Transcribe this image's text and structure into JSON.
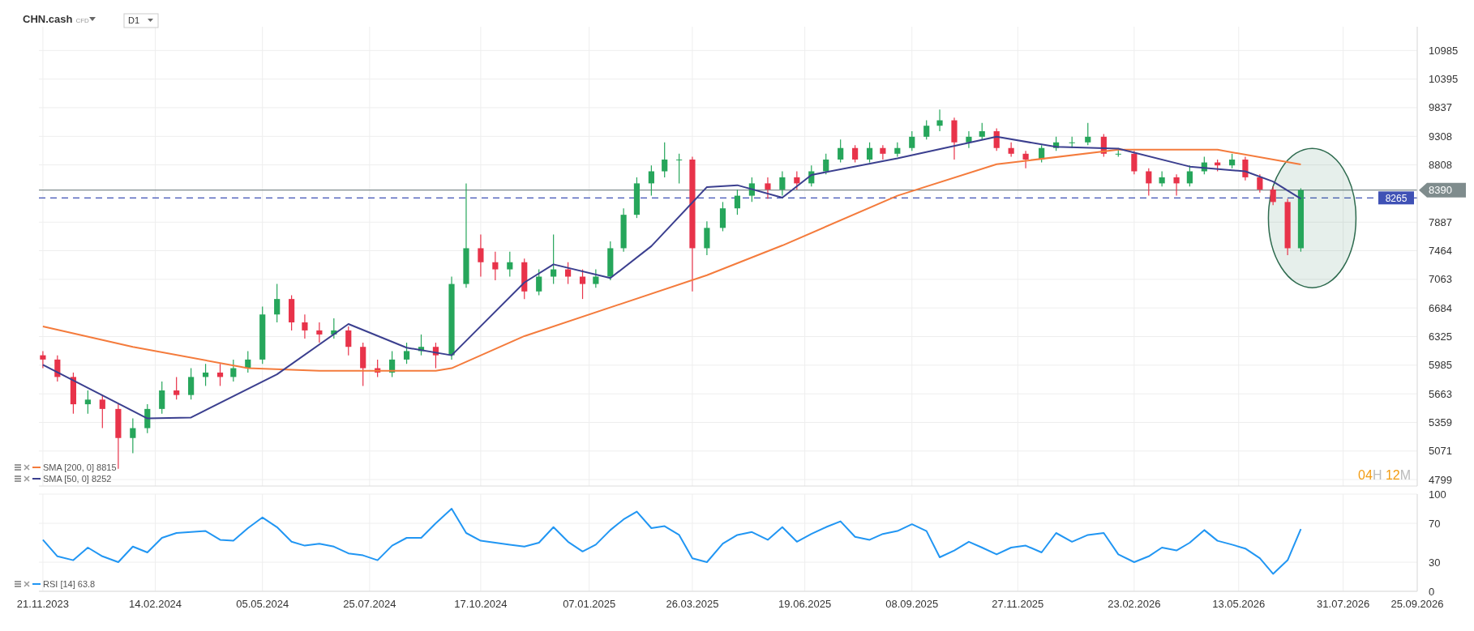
{
  "chart_data": [
    {
      "type": "candlestick",
      "title": "CHN.cash",
      "subtitle": "CFD",
      "annotations": [
        "D1",
        "04H 12M"
      ],
      "x": [
        "2023-11-21",
        "2023-12-02",
        "2023-12-14",
        "2023-12-25",
        "2024-01-05",
        "2024-01-17",
        "2024-01-28",
        "2024-02-08",
        "2024-02-19",
        "2024-03-01",
        "2024-03-12",
        "2024-03-23",
        "2024-04-03",
        "2024-04-13",
        "2024-04-24",
        "2024-05-05",
        "2024-05-16",
        "2024-05-27",
        "2024-06-06",
        "2024-06-17",
        "2024-06-28",
        "2024-07-09",
        "2024-07-20",
        "2024-07-31",
        "2024-08-11",
        "2024-08-22",
        "2024-09-02",
        "2024-09-13",
        "2024-09-25",
        "2024-10-06",
        "2024-10-17",
        "2024-10-28",
        "2024-11-08",
        "2024-11-19",
        "2024-11-30",
        "2024-12-11",
        "2024-12-22",
        "2025-01-02",
        "2025-01-12",
        "2025-01-23",
        "2025-02-02",
        "2025-02-12",
        "2025-02-23",
        "2025-03-05",
        "2025-03-16",
        "2025-03-26",
        "2025-04-06",
        "2025-04-18",
        "2025-04-29",
        "2025-05-10",
        "2025-05-22",
        "2025-06-02",
        "2025-06-13",
        "2025-06-24",
        "2025-07-05",
        "2025-07-16",
        "2025-07-27",
        "2025-08-07",
        "2025-08-17",
        "2025-08-28",
        "2025-09-08",
        "2025-09-19",
        "2025-09-29",
        "2025-10-10",
        "2025-10-21",
        "2025-10-31",
        "2025-11-11",
        "2025-11-22",
        "2025-12-03",
        "2025-12-15",
        "2025-12-26",
        "2026-01-07",
        "2026-01-19",
        "2026-01-31",
        "2026-02-11",
        "2026-02-23",
        "2026-03-06",
        "2026-03-16",
        "2026-03-27",
        "2026-04-06",
        "2026-04-17",
        "2026-04-27",
        "2026-05-08",
        "2026-05-18",
        "2026-05-29",
        "2026-06-08",
        "2026-06-19",
        "2026-06-29"
      ],
      "ohlc": [
        [
          6100,
          6150,
          5950,
          6050
        ],
        [
          6050,
          6100,
          5800,
          5850
        ],
        [
          5850,
          5900,
          5450,
          5550
        ],
        [
          5550,
          5700,
          5450,
          5600
        ],
        [
          5600,
          5650,
          5300,
          5500
        ],
        [
          5500,
          5550,
          4900,
          5200
        ],
        [
          5200,
          5400,
          5050,
          5300
        ],
        [
          5300,
          5550,
          5250,
          5500
        ],
        [
          5500,
          5800,
          5450,
          5700
        ],
        [
          5700,
          5850,
          5600,
          5650
        ],
        [
          5650,
          5950,
          5600,
          5850
        ],
        [
          5850,
          6000,
          5750,
          5900
        ],
        [
          5900,
          6000,
          5750,
          5850
        ],
        [
          5850,
          6050,
          5800,
          5950
        ],
        [
          5950,
          6150,
          5900,
          6050
        ],
        [
          6050,
          6700,
          6000,
          6600
        ],
        [
          6600,
          7000,
          6500,
          6800
        ],
        [
          6800,
          6850,
          6400,
          6500
        ],
        [
          6500,
          6600,
          6300,
          6400
        ],
        [
          6400,
          6500,
          6250,
          6350
        ],
        [
          6350,
          6550,
          6300,
          6400
        ],
        [
          6400,
          6450,
          6100,
          6200
        ],
        [
          6200,
          6250,
          5750,
          5950
        ],
        [
          5950,
          6050,
          5850,
          5900
        ],
        [
          5900,
          6150,
          5850,
          6050
        ],
        [
          6050,
          6250,
          6000,
          6150
        ],
        [
          6150,
          6350,
          6100,
          6200
        ],
        [
          6200,
          6250,
          5950,
          6100
        ],
        [
          6100,
          7100,
          6050,
          7000
        ],
        [
          7000,
          8500,
          6950,
          7500
        ],
        [
          7500,
          7700,
          7100,
          7300
        ],
        [
          7300,
          7450,
          7050,
          7200
        ],
        [
          7200,
          7450,
          7100,
          7300
        ],
        [
          7300,
          7350,
          6800,
          6900
        ],
        [
          6900,
          7200,
          6850,
          7100
        ],
        [
          7100,
          7700,
          7000,
          7200
        ],
        [
          7200,
          7300,
          7000,
          7100
        ],
        [
          7100,
          7200,
          6800,
          7000
        ],
        [
          7000,
          7200,
          6950,
          7100
        ],
        [
          7100,
          7600,
          7050,
          7500
        ],
        [
          7500,
          8100,
          7450,
          8000
        ],
        [
          8000,
          8600,
          7950,
          8500
        ],
        [
          8500,
          8800,
          8300,
          8700
        ],
        [
          8700,
          9200,
          8600,
          8900
        ],
        [
          8900,
          9000,
          8500,
          8900
        ],
        [
          8900,
          8950,
          6900,
          7500
        ],
        [
          7500,
          7900,
          7400,
          7800
        ],
        [
          7800,
          8200,
          7750,
          8100
        ],
        [
          8100,
          8400,
          8000,
          8300
        ],
        [
          8300,
          8600,
          8200,
          8500
        ],
        [
          8500,
          8600,
          8250,
          8400
        ],
        [
          8400,
          8700,
          8300,
          8600
        ],
        [
          8600,
          8700,
          8400,
          8500
        ],
        [
          8500,
          8800,
          8450,
          8700
        ],
        [
          8700,
          9000,
          8650,
          8900
        ],
        [
          8900,
          9250,
          8850,
          9100
        ],
        [
          9100,
          9150,
          8850,
          8900
        ],
        [
          8900,
          9200,
          8850,
          9100
        ],
        [
          9100,
          9150,
          8900,
          9000
        ],
        [
          9000,
          9200,
          8950,
          9100
        ],
        [
          9100,
          9400,
          9050,
          9300
        ],
        [
          9300,
          9600,
          9250,
          9500
        ],
        [
          9500,
          9800,
          9400,
          9600
        ],
        [
          9600,
          9650,
          8900,
          9200
        ],
        [
          9200,
          9400,
          9100,
          9300
        ],
        [
          9300,
          9550,
          9250,
          9400
        ],
        [
          9400,
          9450,
          9050,
          9100
        ],
        [
          9100,
          9200,
          8950,
          9000
        ],
        [
          9000,
          9050,
          8750,
          8900
        ],
        [
          8900,
          9150,
          8850,
          9100
        ],
        [
          9100,
          9300,
          9050,
          9200
        ],
        [
          9200,
          9300,
          9100,
          9200
        ],
        [
          9200,
          9550,
          9150,
          9300
        ],
        [
          9300,
          9350,
          8950,
          9000
        ],
        [
          9000,
          9100,
          8950,
          9000
        ],
        [
          9000,
          9050,
          8650,
          8700
        ],
        [
          8700,
          8750,
          8300,
          8500
        ],
        [
          8500,
          8700,
          8450,
          8600
        ],
        [
          8600,
          8650,
          8300,
          8500
        ],
        [
          8500,
          8800,
          8450,
          8700
        ],
        [
          8700,
          8950,
          8650,
          8850
        ],
        [
          8850,
          8900,
          8700,
          8800
        ],
        [
          8800,
          9000,
          8750,
          8900
        ],
        [
          8900,
          8950,
          8550,
          8600
        ],
        [
          8600,
          8650,
          8350,
          8400
        ],
        [
          8400,
          8450,
          8150,
          8200
        ],
        [
          8200,
          8250,
          7400,
          7500
        ],
        [
          7500,
          8420,
          7450,
          8390
        ]
      ],
      "series": [
        {
          "type": "line",
          "name": "SMA [200, 0] 8815",
          "color": "#f47b3c",
          "x": [
            "2023-11-21",
            "2024-01-28",
            "2024-04-24",
            "2024-06-17",
            "2024-09-13",
            "2024-09-25",
            "2024-11-19",
            "2025-04-06",
            "2025-06-02",
            "2025-08-28",
            "2025-11-11",
            "2026-02-11",
            "2026-04-27",
            "2026-06-29"
          ],
          "values": [
            6450,
            6200,
            5950,
            5920,
            5920,
            5950,
            6330,
            7120,
            7540,
            8300,
            8820,
            9070,
            9070,
            8815
          ]
        },
        {
          "type": "line",
          "name": "SMA [50, 0] 8252",
          "color": "#3b3f8f",
          "x": [
            "2023-11-21",
            "2024-02-08",
            "2024-03-12",
            "2024-05-16",
            "2024-07-09",
            "2024-08-22",
            "2024-09-25",
            "2024-11-19",
            "2024-12-11",
            "2025-01-23",
            "2025-02-23",
            "2025-04-06",
            "2025-04-29",
            "2025-06-02",
            "2025-06-24",
            "2025-08-28",
            "2025-11-11",
            "2025-12-26",
            "2026-02-11",
            "2026-04-06",
            "2026-05-18",
            "2026-06-08",
            "2026-06-29"
          ],
          "values": [
            5990,
            5400,
            5410,
            5880,
            6480,
            6190,
            6100,
            7020,
            7270,
            7080,
            7530,
            8440,
            8470,
            8270,
            8640,
            8920,
            9300,
            9120,
            9090,
            8780,
            8700,
            8530,
            8252
          ]
        }
      ],
      "ref_lines": [
        {
          "axis": "y",
          "value": 8390,
          "label": "8390",
          "color": "#7f8c8d",
          "line_style": "solid"
        },
        {
          "axis": "y",
          "value": 8265,
          "label": "8265",
          "color": "#3f51b5",
          "line_style": "dashed"
        }
      ],
      "log": "y",
      "ylim": [
        4740,
        11500
      ],
      "yticks": [
        4799,
        5071,
        5359,
        5663,
        5985,
        6325,
        6684,
        7063,
        7464,
        7887,
        8808,
        9308,
        9837,
        10395,
        10985
      ],
      "xlim": [
        "2023-11-18",
        "2026-09-25"
      ],
      "xticks": [
        {
          "value": "2023-11-21",
          "label": null
        },
        {
          "value": "2024-02-14",
          "label": null
        },
        {
          "value": "2024-05-05",
          "label": null
        },
        {
          "value": "2024-07-25",
          "label": null
        },
        {
          "value": "2024-10-17",
          "label": null
        },
        {
          "value": "2025-01-07",
          "label": null
        },
        {
          "value": "2025-03-26",
          "label": null
        },
        {
          "value": "2025-06-19",
          "label": null
        },
        {
          "value": "2025-09-08",
          "label": null
        },
        {
          "value": "2025-11-27",
          "label": null
        },
        {
          "value": "2026-02-23",
          "label": null
        },
        {
          "value": "2026-05-13",
          "label": null
        },
        {
          "value": "2026-07-31",
          "label": null
        },
        {
          "value": "2026-09-25",
          "label": null
        }
      ],
      "tick_labels": "y",
      "grid": true,
      "legend": "bottom left"
    },
    {
      "type": "line",
      "x": [
        "2023-11-21",
        "2023-12-02",
        "2023-12-14",
        "2023-12-25",
        "2024-01-05",
        "2024-01-17",
        "2024-01-28",
        "2024-02-08",
        "2024-02-19",
        "2024-03-01",
        "2024-03-12",
        "2024-03-23",
        "2024-04-03",
        "2024-04-13",
        "2024-04-24",
        "2024-05-05",
        "2024-05-16",
        "2024-05-27",
        "2024-06-06",
        "2024-06-17",
        "2024-06-28",
        "2024-07-09",
        "2024-07-20",
        "2024-07-31",
        "2024-08-11",
        "2024-08-22",
        "2024-09-02",
        "2024-09-13",
        "2024-09-25",
        "2024-10-06",
        "2024-10-17",
        "2024-10-28",
        "2024-11-08",
        "2024-11-19",
        "2024-11-30",
        "2024-12-11",
        "2024-12-22",
        "2025-01-02",
        "2025-01-12",
        "2025-01-23",
        "2025-02-02",
        "2025-02-12",
        "2025-02-23",
        "2025-03-05",
        "2025-03-16",
        "2025-03-26",
        "2025-04-06",
        "2025-04-18",
        "2025-04-29",
        "2025-05-10",
        "2025-05-22",
        "2025-06-02",
        "2025-06-13",
        "2025-06-24",
        "2025-07-05",
        "2025-07-16",
        "2025-07-27",
        "2025-08-07",
        "2025-08-17",
        "2025-08-28",
        "2025-09-08",
        "2025-09-19",
        "2025-09-29",
        "2025-10-10",
        "2025-10-21",
        "2025-10-31",
        "2025-11-11",
        "2025-11-22",
        "2025-12-03",
        "2025-12-15",
        "2025-12-26",
        "2026-01-07",
        "2026-01-19",
        "2026-01-31",
        "2026-02-11",
        "2026-02-23",
        "2026-03-06",
        "2026-03-16",
        "2026-03-27",
        "2026-04-06",
        "2026-04-17",
        "2026-04-27",
        "2026-05-08",
        "2026-05-18",
        "2026-05-29",
        "2026-06-08",
        "2026-06-19",
        "2026-06-29"
      ],
      "series": [
        {
          "name": "RSI [14] 63.8",
          "color": "#2196f3",
          "values": [
            53,
            36,
            32,
            45,
            36,
            30,
            46,
            40,
            55,
            60,
            61,
            62,
            53,
            52,
            65,
            76,
            66,
            51,
            47,
            49,
            46,
            39,
            37,
            32,
            47,
            55,
            55,
            70,
            85,
            60,
            52,
            50,
            48,
            46,
            50,
            66,
            51,
            41,
            48,
            63,
            74,
            82,
            65,
            67,
            58,
            34,
            30,
            49,
            58,
            61,
            53,
            66,
            51,
            59,
            66,
            72,
            56,
            53,
            59,
            62,
            69,
            62,
            35,
            42,
            51,
            45,
            38,
            45,
            47,
            40,
            60,
            51,
            58,
            60,
            38,
            30,
            36,
            45,
            42,
            50,
            63,
            52,
            48,
            44,
            34,
            18,
            32,
            64
          ]
        }
      ],
      "ylim": [
        0,
        100
      ],
      "yticks": [
        0,
        30,
        70,
        100
      ],
      "xlim": [
        "2023-11-18",
        "2026-09-25"
      ],
      "xticks": [
        {
          "value": "2023-11-21",
          "label": "21.11.2023"
        },
        {
          "value": "2024-02-14",
          "label": "14.02.2024"
        },
        {
          "value": "2024-05-05",
          "label": "05.05.2024"
        },
        {
          "value": "2024-07-25",
          "label": "25.07.2024"
        },
        {
          "value": "2024-10-17",
          "label": "17.10.2024"
        },
        {
          "value": "2025-01-07",
          "label": "07.01.2025"
        },
        {
          "value": "2025-03-26",
          "label": "26.03.2025"
        },
        {
          "value": "2025-06-19",
          "label": "19.06.2025"
        },
        {
          "value": "2025-09-08",
          "label": "08.09.2025"
        },
        {
          "value": "2025-11-27",
          "label": "27.11.2025"
        },
        {
          "value": "2026-02-23",
          "label": "23.02.2026"
        },
        {
          "value": "2026-05-13",
          "label": "13.05.2026"
        },
        {
          "value": "2026-07-31",
          "label": "31.07.2026"
        },
        {
          "value": "2026-09-25",
          "label": "25.09.2026"
        }
      ],
      "grid": true,
      "legend": "bottom left"
    }
  ]
}
